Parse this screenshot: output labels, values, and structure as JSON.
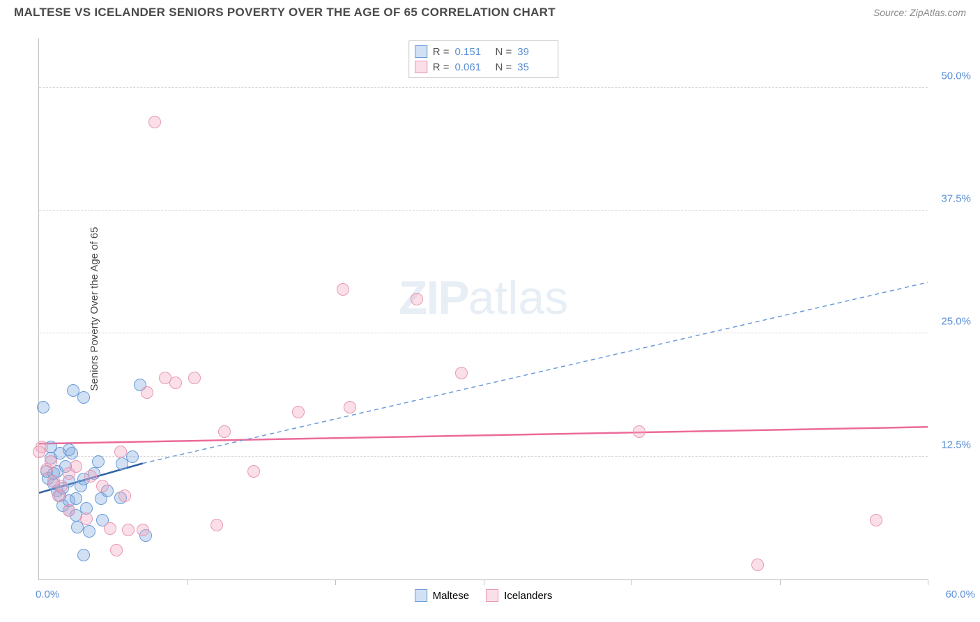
{
  "header": {
    "title": "MALTESE VS ICELANDER SENIORS POVERTY OVER THE AGE OF 65 CORRELATION CHART",
    "source": "Source: ZipAtlas.com"
  },
  "ylabel": "Seniors Poverty Over the Age of 65",
  "watermark": {
    "bold": "ZIP",
    "rest": "atlas"
  },
  "axes": {
    "xlim": [
      0,
      60
    ],
    "ylim": [
      0,
      55
    ],
    "xticks": [
      0,
      10,
      20,
      30,
      40,
      50,
      60
    ],
    "xtick_labels": {
      "min": "0.0%",
      "max": "60.0%"
    },
    "ygrid": [
      12.5,
      25.0,
      37.5,
      50.0
    ],
    "ytick_labels": [
      "12.5%",
      "25.0%",
      "37.5%",
      "50.0%"
    ]
  },
  "colors": {
    "series1_fill": "rgba(123,167,221,0.35)",
    "series1_stroke": "#6a9bd8",
    "series2_fill": "rgba(244,164,189,0.35)",
    "series2_stroke": "#e797b3",
    "trend1_solid": "#2e5fa3",
    "trend1_dash": "#6a9bd8",
    "trend2": "#ec6a9a",
    "axis_label": "#5b8fd6",
    "grid": "#d8d8d8"
  },
  "marker": {
    "radius": 9,
    "stroke_width": 1.2
  },
  "series": [
    {
      "name": "Maltese",
      "color_key": "series1",
      "stats": {
        "R": "0.151",
        "N": "39"
      },
      "trend": {
        "solid": [
          [
            0,
            8.8
          ],
          [
            7,
            11.8
          ]
        ],
        "dash": [
          [
            7,
            11.8
          ],
          [
            60,
            30.2
          ]
        ]
      },
      "points": [
        [
          0.3,
          17.5
        ],
        [
          0.5,
          11.0
        ],
        [
          0.6,
          10.3
        ],
        [
          0.8,
          13.5
        ],
        [
          0.8,
          12.3
        ],
        [
          1.0,
          9.7
        ],
        [
          1.0,
          10.8
        ],
        [
          1.2,
          9.0
        ],
        [
          1.2,
          11.0
        ],
        [
          1.4,
          8.5
        ],
        [
          1.4,
          12.8
        ],
        [
          1.6,
          7.5
        ],
        [
          1.6,
          9.3
        ],
        [
          1.8,
          11.5
        ],
        [
          2.0,
          7.0
        ],
        [
          2.0,
          10.0
        ],
        [
          2.0,
          8.0
        ],
        [
          2.2,
          12.8
        ],
        [
          2.3,
          19.2
        ],
        [
          2.5,
          6.5
        ],
        [
          2.5,
          8.2
        ],
        [
          2.6,
          5.3
        ],
        [
          2.8,
          9.5
        ],
        [
          3.0,
          10.2
        ],
        [
          3.0,
          18.5
        ],
        [
          3.2,
          7.2
        ],
        [
          3.4,
          4.9
        ],
        [
          3.7,
          10.8
        ],
        [
          4.0,
          12.0
        ],
        [
          4.2,
          8.2
        ],
        [
          4.3,
          6.0
        ],
        [
          4.6,
          9.0
        ],
        [
          5.5,
          8.3
        ],
        [
          5.6,
          11.8
        ],
        [
          6.3,
          12.5
        ],
        [
          6.8,
          19.8
        ],
        [
          7.2,
          4.5
        ],
        [
          2.0,
          13.2
        ],
        [
          3.0,
          2.5
        ]
      ]
    },
    {
      "name": "Icelanders",
      "color_key": "series2",
      "stats": {
        "R": "0.061",
        "N": "35"
      },
      "trend": {
        "solid": [
          [
            0,
            13.8
          ],
          [
            60,
            15.5
          ]
        ]
      },
      "points": [
        [
          0.2,
          13.5
        ],
        [
          0.5,
          11.2
        ],
        [
          0.8,
          12.0
        ],
        [
          1.0,
          10.0
        ],
        [
          1.3,
          8.5
        ],
        [
          1.5,
          9.5
        ],
        [
          2.0,
          10.8
        ],
        [
          2.0,
          7.0
        ],
        [
          2.5,
          11.5
        ],
        [
          3.2,
          6.2
        ],
        [
          3.5,
          10.5
        ],
        [
          4.3,
          9.5
        ],
        [
          4.8,
          5.2
        ],
        [
          5.2,
          3.0
        ],
        [
          5.5,
          13.0
        ],
        [
          5.8,
          8.5
        ],
        [
          6.0,
          5.0
        ],
        [
          7.0,
          5.0
        ],
        [
          7.3,
          19.0
        ],
        [
          7.8,
          46.5
        ],
        [
          8.5,
          20.5
        ],
        [
          9.2,
          20.0
        ],
        [
          10.5,
          20.5
        ],
        [
          12.0,
          5.5
        ],
        [
          12.5,
          15.0
        ],
        [
          14.5,
          11.0
        ],
        [
          17.5,
          17.0
        ],
        [
          20.5,
          29.5
        ],
        [
          21.0,
          17.5
        ],
        [
          25.5,
          28.5
        ],
        [
          28.5,
          21.0
        ],
        [
          40.5,
          15.0
        ],
        [
          48.5,
          1.5
        ],
        [
          56.5,
          6.0
        ],
        [
          0.0,
          13.0
        ]
      ]
    }
  ],
  "footer_legend": [
    {
      "swatch": "series1",
      "label": "Maltese"
    },
    {
      "swatch": "series2",
      "label": "Icelanders"
    }
  ]
}
